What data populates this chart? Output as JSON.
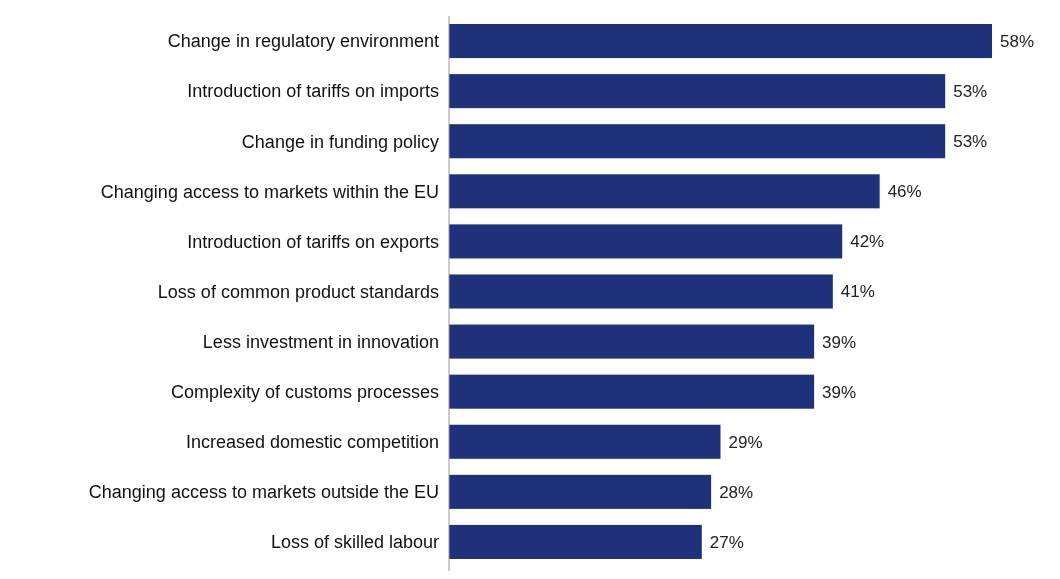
{
  "chart_data": {
    "type": "bar",
    "orientation": "horizontal",
    "categories": [
      "Change in regulatory environment",
      "Introduction of tariffs on imports",
      "Change in funding policy",
      "Changing access to markets within the EU",
      "Introduction of tariffs on exports",
      "Loss of common product standards",
      "Less investment in innovation",
      "Complexity of customs processes",
      "Increased domestic competition",
      "Changing access to markets outside the EU",
      "Loss of skilled labour"
    ],
    "values": [
      58,
      53,
      53,
      46,
      42,
      41,
      39,
      39,
      29,
      28,
      27
    ],
    "value_labels": [
      "58%",
      "53%",
      "53%",
      "46%",
      "42%",
      "41%",
      "39%",
      "39%",
      "29%",
      "28%",
      "27%"
    ],
    "color": "#1f317a"
  }
}
